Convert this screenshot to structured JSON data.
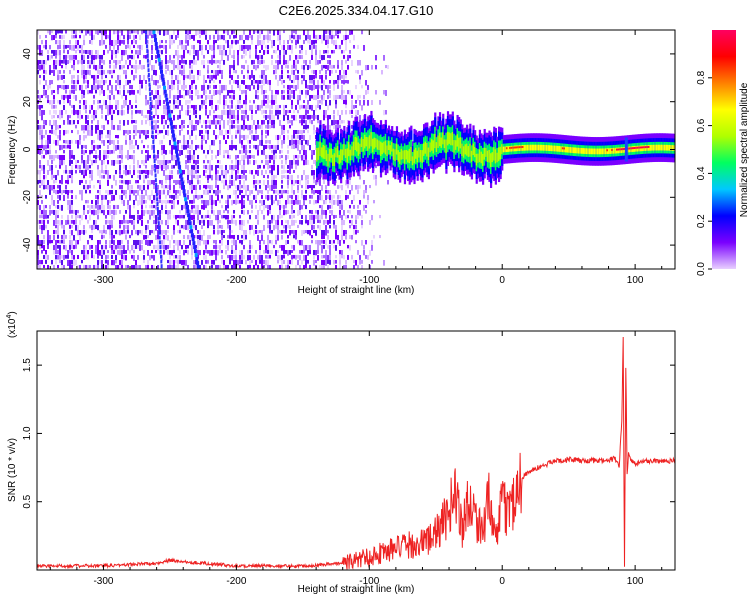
{
  "figure": {
    "title": "C2E6.2025.334.04.17.G10"
  },
  "chart_data": [
    {
      "type": "heatmap",
      "xlabel": "Height of straight line (km)",
      "ylabel": "Frequency (Hz)",
      "xlim": [
        -350,
        130
      ],
      "ylim": [
        -50,
        50
      ],
      "xticks": [
        -300,
        -200,
        -100,
        0,
        100
      ],
      "yticks": [
        -40,
        -20,
        0,
        20,
        40
      ],
      "colorbar": {
        "label": "Normalized spectral amplitude",
        "range": [
          0,
          1
        ],
        "ticks": [
          "0.0",
          "0.2",
          "0.4",
          "0.6",
          "0.8"
        ],
        "colormap": [
          "#e8d0ff",
          "#7a00ff",
          "#0000ff",
          "#00c8ff",
          "#00ff60",
          "#b0ff00",
          "#ffff00",
          "#ff8000",
          "#ff0000",
          "#ff0060"
        ]
      },
      "regions": [
        {
          "name": "noise",
          "x": [
            -350,
            -100
          ],
          "amplitude": 0.15
        },
        {
          "name": "drifting-trace",
          "x_at_top": -262,
          "x_at_bottom": -228,
          "amplitude": 0.25
        },
        {
          "name": "signal-band",
          "x": [
            -140,
            130
          ],
          "frequency_center": 0,
          "amplitude": [
            0.4,
            1.0
          ]
        },
        {
          "name": "disturbance",
          "x": 93,
          "amplitude": 0.3
        }
      ]
    },
    {
      "type": "line",
      "xlabel": "Height of straight line (km)",
      "ylabel": "SNR (10 * v/v)",
      "yscale_label": "(x10",
      "yscale_exp": "4",
      "xlim": [
        -350,
        130
      ],
      "ylim": [
        0,
        1.75
      ],
      "xticks": [
        -300,
        -200,
        -100,
        0,
        100
      ],
      "yticks": [
        "0.5",
        "1.0",
        "1.5"
      ],
      "color": "#ee2222",
      "series": [
        {
          "x": [
            -350,
            -300,
            -260,
            -250,
            -200,
            -150,
            -120,
            -100,
            -80,
            -60,
            -50,
            -40,
            -35,
            -30,
            -25,
            -20,
            -15,
            -10,
            -5,
            0,
            5,
            10,
            15,
            20,
            30,
            40,
            50,
            60,
            70,
            80,
            85,
            88,
            90,
            91,
            92,
            93,
            94,
            95,
            97,
            100,
            110,
            120,
            130
          ],
          "y": [
            0.03,
            0.03,
            0.05,
            0.07,
            0.03,
            0.03,
            0.05,
            0.1,
            0.16,
            0.2,
            0.26,
            0.42,
            0.6,
            0.3,
            0.55,
            0.38,
            0.3,
            0.5,
            0.22,
            0.48,
            0.42,
            0.56,
            0.68,
            0.72,
            0.76,
            0.8,
            0.81,
            0.8,
            0.8,
            0.8,
            0.82,
            0.75,
            1.1,
            1.72,
            0.03,
            1.5,
            0.7,
            0.85,
            0.8,
            0.78,
            0.8,
            0.8,
            0.8
          ]
        }
      ]
    }
  ]
}
